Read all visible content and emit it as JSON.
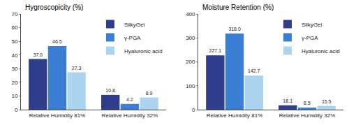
{
  "chart_data": [
    {
      "type": "bar",
      "title": "Hygroscopicity (%)",
      "categories": [
        "Relative Humidity 81%",
        "Relative Humidity 32%"
      ],
      "series": [
        {
          "name": "SilkyGel",
          "color": "#2e3e8c",
          "values": [
            37.0,
            10.8
          ],
          "value_labels": [
            "37.0",
            "10.8"
          ]
        },
        {
          "name": "γ‐PGA",
          "color": "#3a7fd5",
          "values": [
            46.5,
            4.2
          ],
          "value_labels": [
            "46.5",
            "4.2"
          ]
        },
        {
          "name": "Hyaluronic acid",
          "color": "#aad4f0",
          "values": [
            27.3,
            8.9
          ],
          "value_labels": [
            "27.3",
            "8.9"
          ]
        }
      ],
      "ylim": [
        0,
        70
      ],
      "yticks": [
        0,
        10,
        20,
        30,
        40,
        50,
        60,
        70
      ],
      "data_labels": true,
      "legend": "upper right",
      "grid": false
    },
    {
      "type": "bar",
      "title": "Moisture Retention (%)",
      "categories": [
        "Relative Humidity 81%",
        "Relative Humidity 32%"
      ],
      "series": [
        {
          "name": "SilkyGel",
          "color": "#2e3e8c",
          "values": [
            227.1,
            18.1
          ],
          "value_labels": [
            "227.1",
            "18.1"
          ]
        },
        {
          "name": "γ‐PGA",
          "color": "#3a7fd5",
          "values": [
            318.0,
            8.5
          ],
          "value_labels": [
            "318.0",
            "8.5"
          ]
        },
        {
          "name": "Hyaluronic acid",
          "color": "#aad4f0",
          "values": [
            142.7,
            15.5
          ],
          "value_labels": [
            "142.7",
            "15.5"
          ]
        }
      ],
      "ylim": [
        0,
        400
      ],
      "yticks": [
        0,
        100,
        200,
        300,
        400
      ],
      "data_labels": true,
      "legend": "upper right",
      "grid": false
    }
  ]
}
